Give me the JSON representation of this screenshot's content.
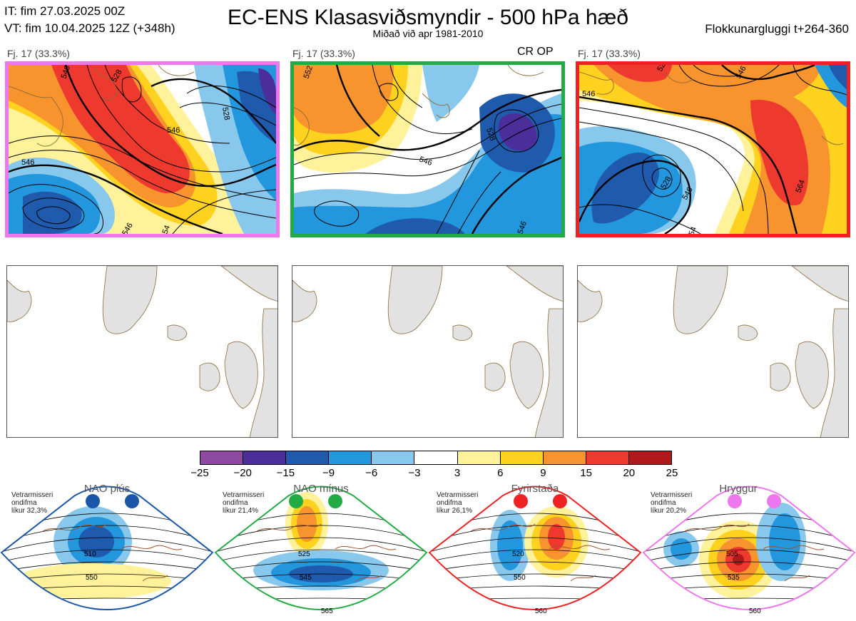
{
  "header": {
    "it_line": "IT: fim 27.03.2025 00Z",
    "vt_line": "VT: fim 10.04.2025 12Z  (+348h)",
    "title": "EC-ENS Klasasviðsmyndir - 500 hPa hæð",
    "subtitle": "Miðað við apr 1981-2010",
    "window": "Flokkunargluggi t+264-360"
  },
  "panels": [
    {
      "label": "Fj. 17 (33.3%)",
      "border_color": "#ee77ee",
      "contours": [
        "546",
        "528",
        "546",
        "546",
        "528",
        "546",
        "54"
      ]
    },
    {
      "label": "Fj. 17 (33.3%)",
      "border_color": "#22aa44",
      "contours": [
        "552",
        "528",
        "546",
        "546"
      ],
      "tag": "CR OP"
    },
    {
      "label": "Fj. 17 (33.3%)",
      "border_color": "#ee2222",
      "contours": [
        "546",
        "528",
        "546",
        "528",
        "546",
        "564",
        "54"
      ]
    }
  ],
  "empty_panels": 3,
  "colorbar": {
    "colors": [
      "#8e4aa0",
      "#4b2e9a",
      "#1f5aad",
      "#2397dd",
      "#87c8ec",
      "#ffffff",
      "#fff29a",
      "#ffd21f",
      "#f7942d",
      "#ee3a2e",
      "#b0181c"
    ],
    "ticks": [
      "−25",
      "−20",
      "−15",
      "−9",
      "−6",
      "−3",
      "3",
      "6",
      "9",
      "15",
      "20",
      "25"
    ]
  },
  "regimes": [
    {
      "name": "NAO plús",
      "season": "Vetrarmisseri",
      "desc": "ondifma",
      "prob": "líkur 32,3%",
      "color": "#1a56a8",
      "labels": [
        "510",
        "550"
      ]
    },
    {
      "name": "NAO mínus",
      "season": "Vetrarmisseri",
      "desc": "ondifma",
      "prob": "líkur 21,4%",
      "color": "#22aa44",
      "labels": [
        "525",
        "545",
        "565"
      ]
    },
    {
      "name": "Fyrirstaða",
      "season": "Vetrarmisseri",
      "desc": "ondifma",
      "prob": "líkur 26,1%",
      "color": "#ee2222",
      "labels": [
        "520",
        "550",
        "560"
      ]
    },
    {
      "name": "Hryggur",
      "season": "Vetrarmisseri",
      "desc": "ondifma",
      "prob": "líkur 20,2%",
      "color": "#ee77ee",
      "labels": [
        "505",
        "535",
        "560"
      ]
    }
  ],
  "chart_data": [
    {
      "type": "heatmap",
      "title": "EC-ENS Klasasviðsmyndir - 500 hPa hæð",
      "legend": {
        "bins": [
          "−25",
          "−20",
          "−15",
          "−9",
          "−6",
          "−3",
          "3",
          "6",
          "9",
          "15",
          "20",
          "25"
        ]
      },
      "panels": [
        "Fj. 17 (33.3%)",
        "Fj. 17 (33.3%)",
        "Fj. 17 (33.3%)"
      ],
      "regime_probabilities": {
        "NAO plús": 32.3,
        "NAO mínus": 21.4,
        "Fyrirstaða": 26.1,
        "Hryggur": 20.2
      }
    }
  ]
}
